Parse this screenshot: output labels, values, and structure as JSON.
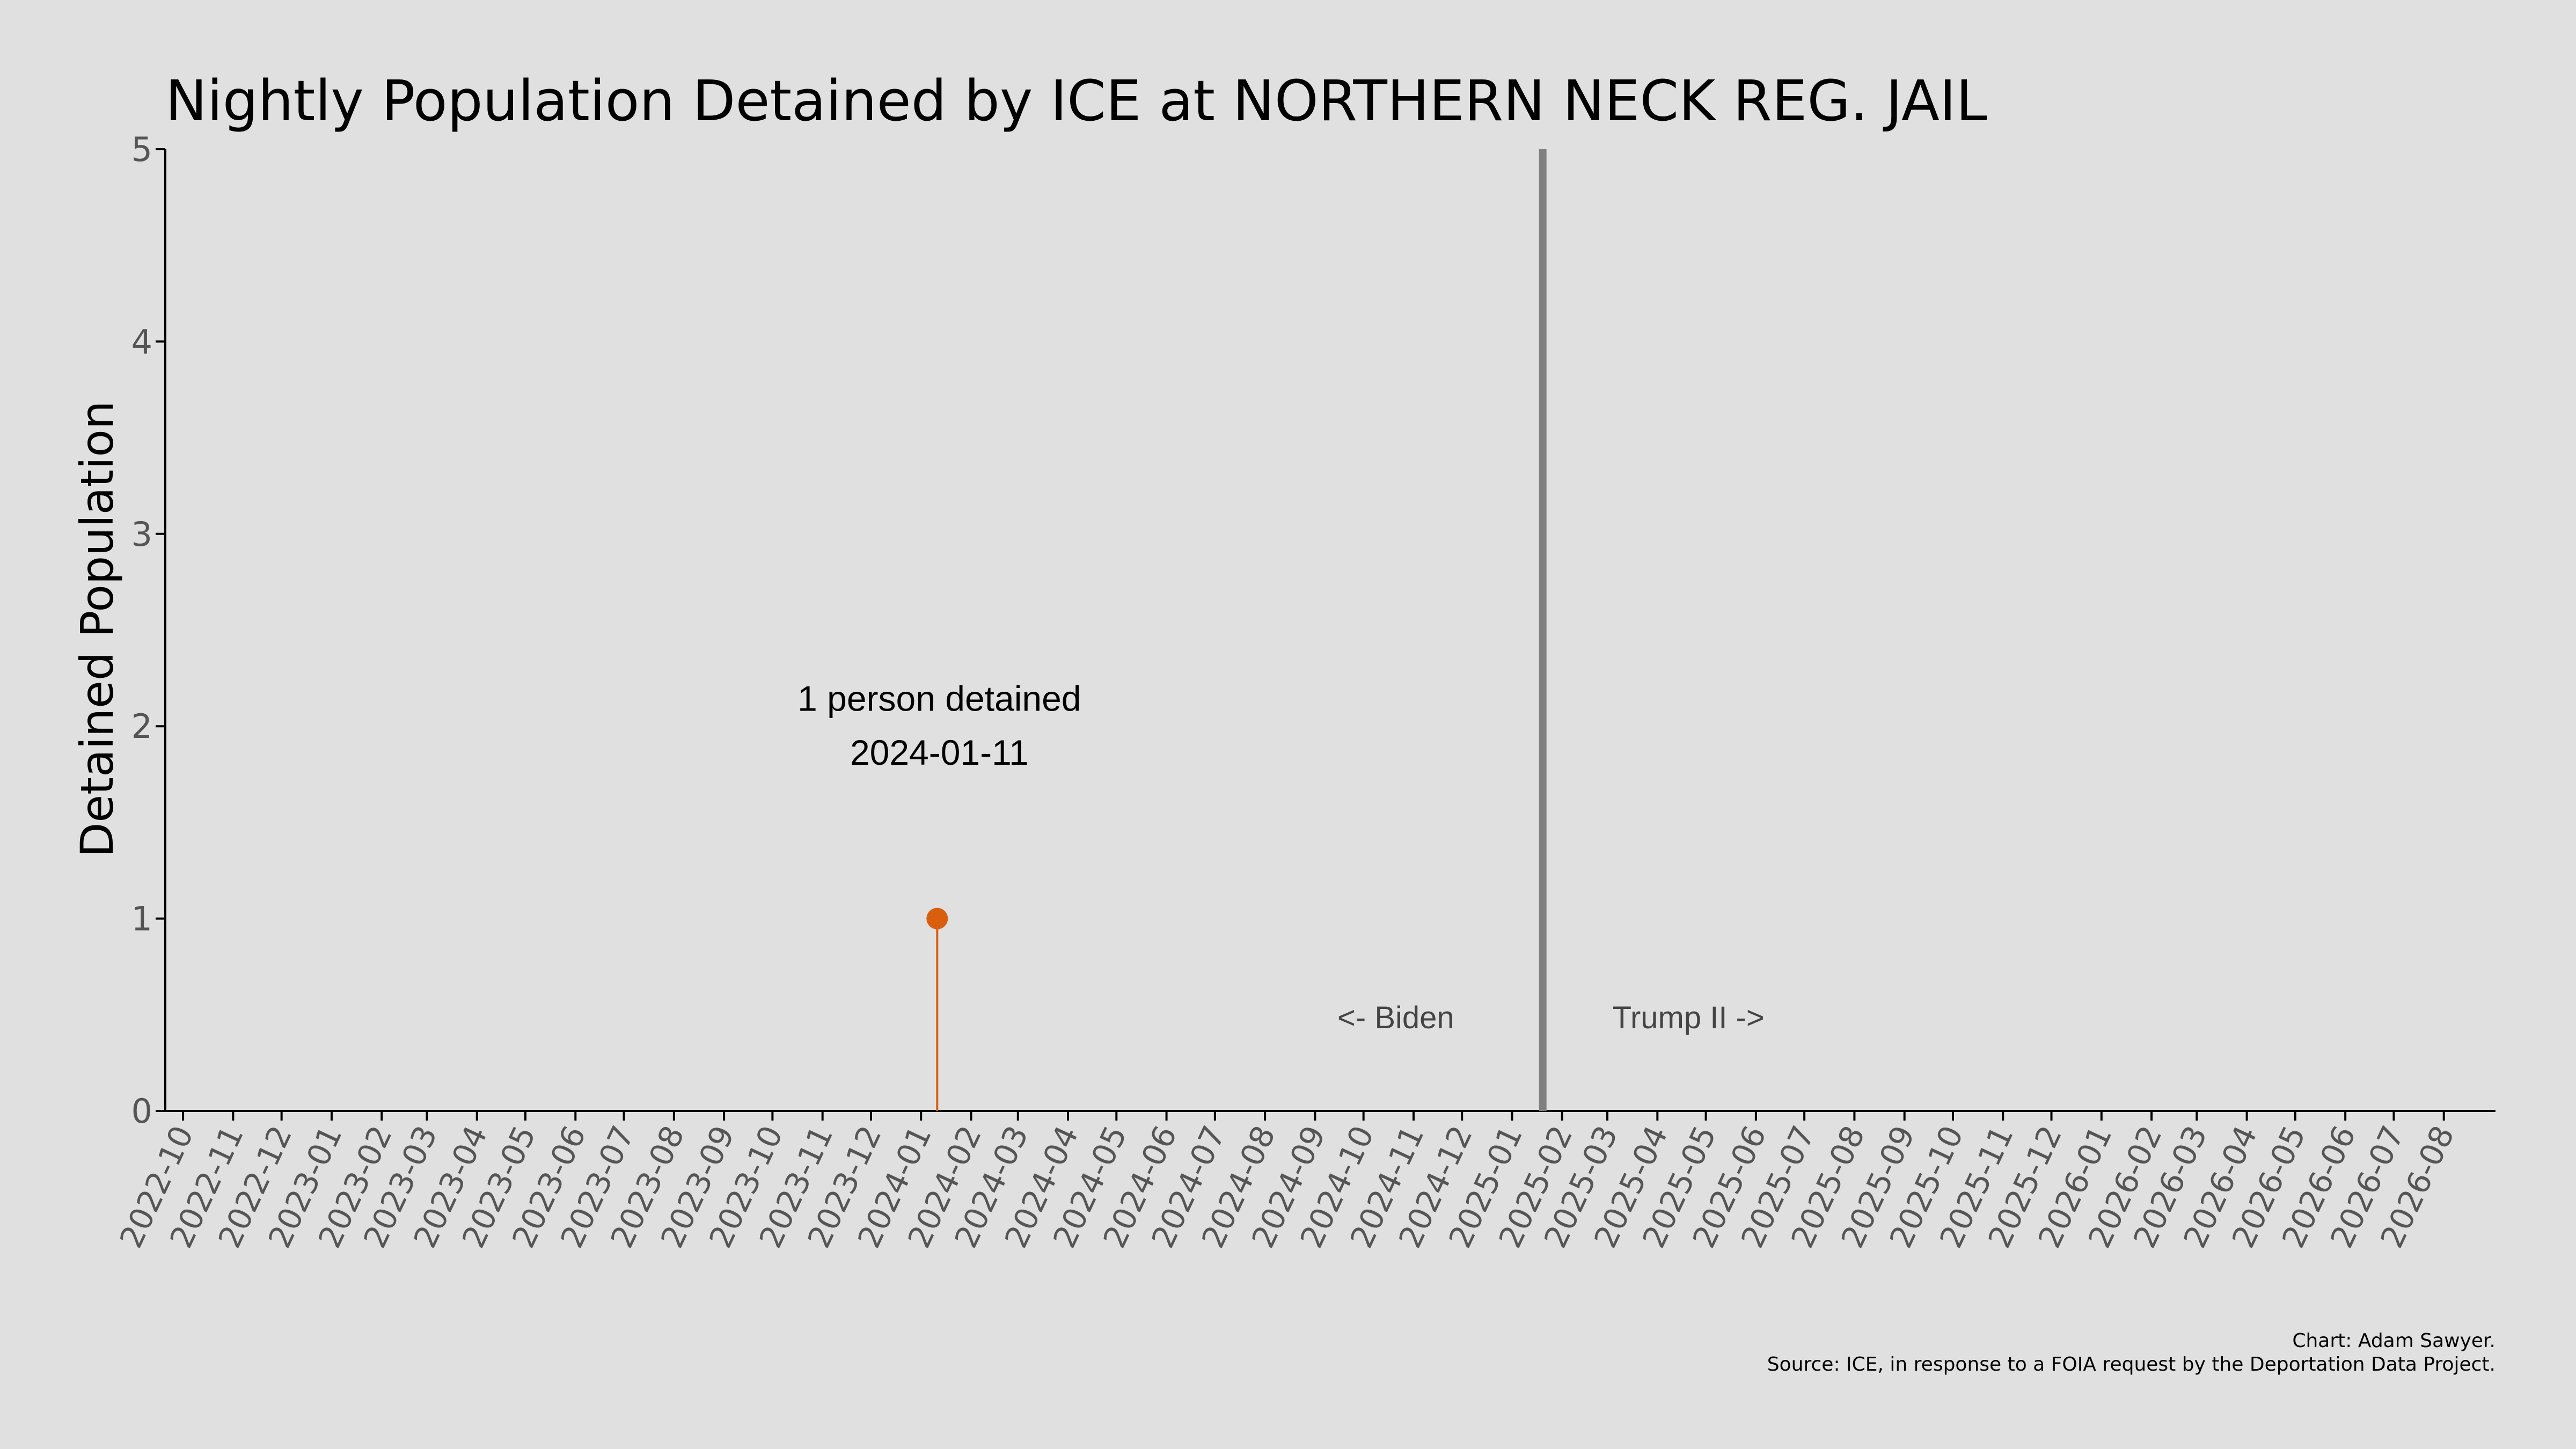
{
  "chart_data": {
    "type": "line",
    "title": "Nightly Population Detained by ICE at NORTHERN NECK REG. JAIL",
    "ylabel": "Detained Population",
    "xlabel": "",
    "ylim": [
      0,
      5
    ],
    "yticks": [
      "0",
      "1",
      "2",
      "3",
      "4",
      "5"
    ],
    "xlim": [
      "2022-09-20",
      "2026-09-02"
    ],
    "xticks": [
      "2022-10",
      "2022-11",
      "2022-12",
      "2023-01",
      "2023-02",
      "2023-03",
      "2023-04",
      "2023-05",
      "2023-06",
      "2023-07",
      "2023-08",
      "2023-09",
      "2023-10",
      "2023-11",
      "2023-12",
      "2024-01",
      "2024-02",
      "2024-03",
      "2024-04",
      "2024-05",
      "2024-06",
      "2024-07",
      "2024-08",
      "2024-09",
      "2024-10",
      "2024-11",
      "2024-12",
      "2025-01",
      "2025-02",
      "2025-03",
      "2025-04",
      "2025-05",
      "2025-06",
      "2025-07",
      "2025-08",
      "2025-09",
      "2025-10",
      "2025-11",
      "2025-12",
      "2026-01",
      "2026-02",
      "2026-03",
      "2026-04",
      "2026-05",
      "2026-06",
      "2026-07",
      "2026-08"
    ],
    "grid": false,
    "series": [
      {
        "points": [
          {
            "x": "2024-01-11",
            "y": 1
          }
        ],
        "color": "#d95f0e"
      }
    ],
    "vline": {
      "x": "2025-01-20",
      "color": "#808080"
    },
    "annotations": {
      "peak_line1": "1 person detained",
      "peak_line2": "2024-01-11",
      "biden": "<- Biden",
      "trump": "Trump II ->"
    }
  },
  "credits": {
    "line1": "Chart: Adam Sawyer.",
    "line2": "Source: ICE, in response to a FOIA request by the Deportation Data Project."
  }
}
